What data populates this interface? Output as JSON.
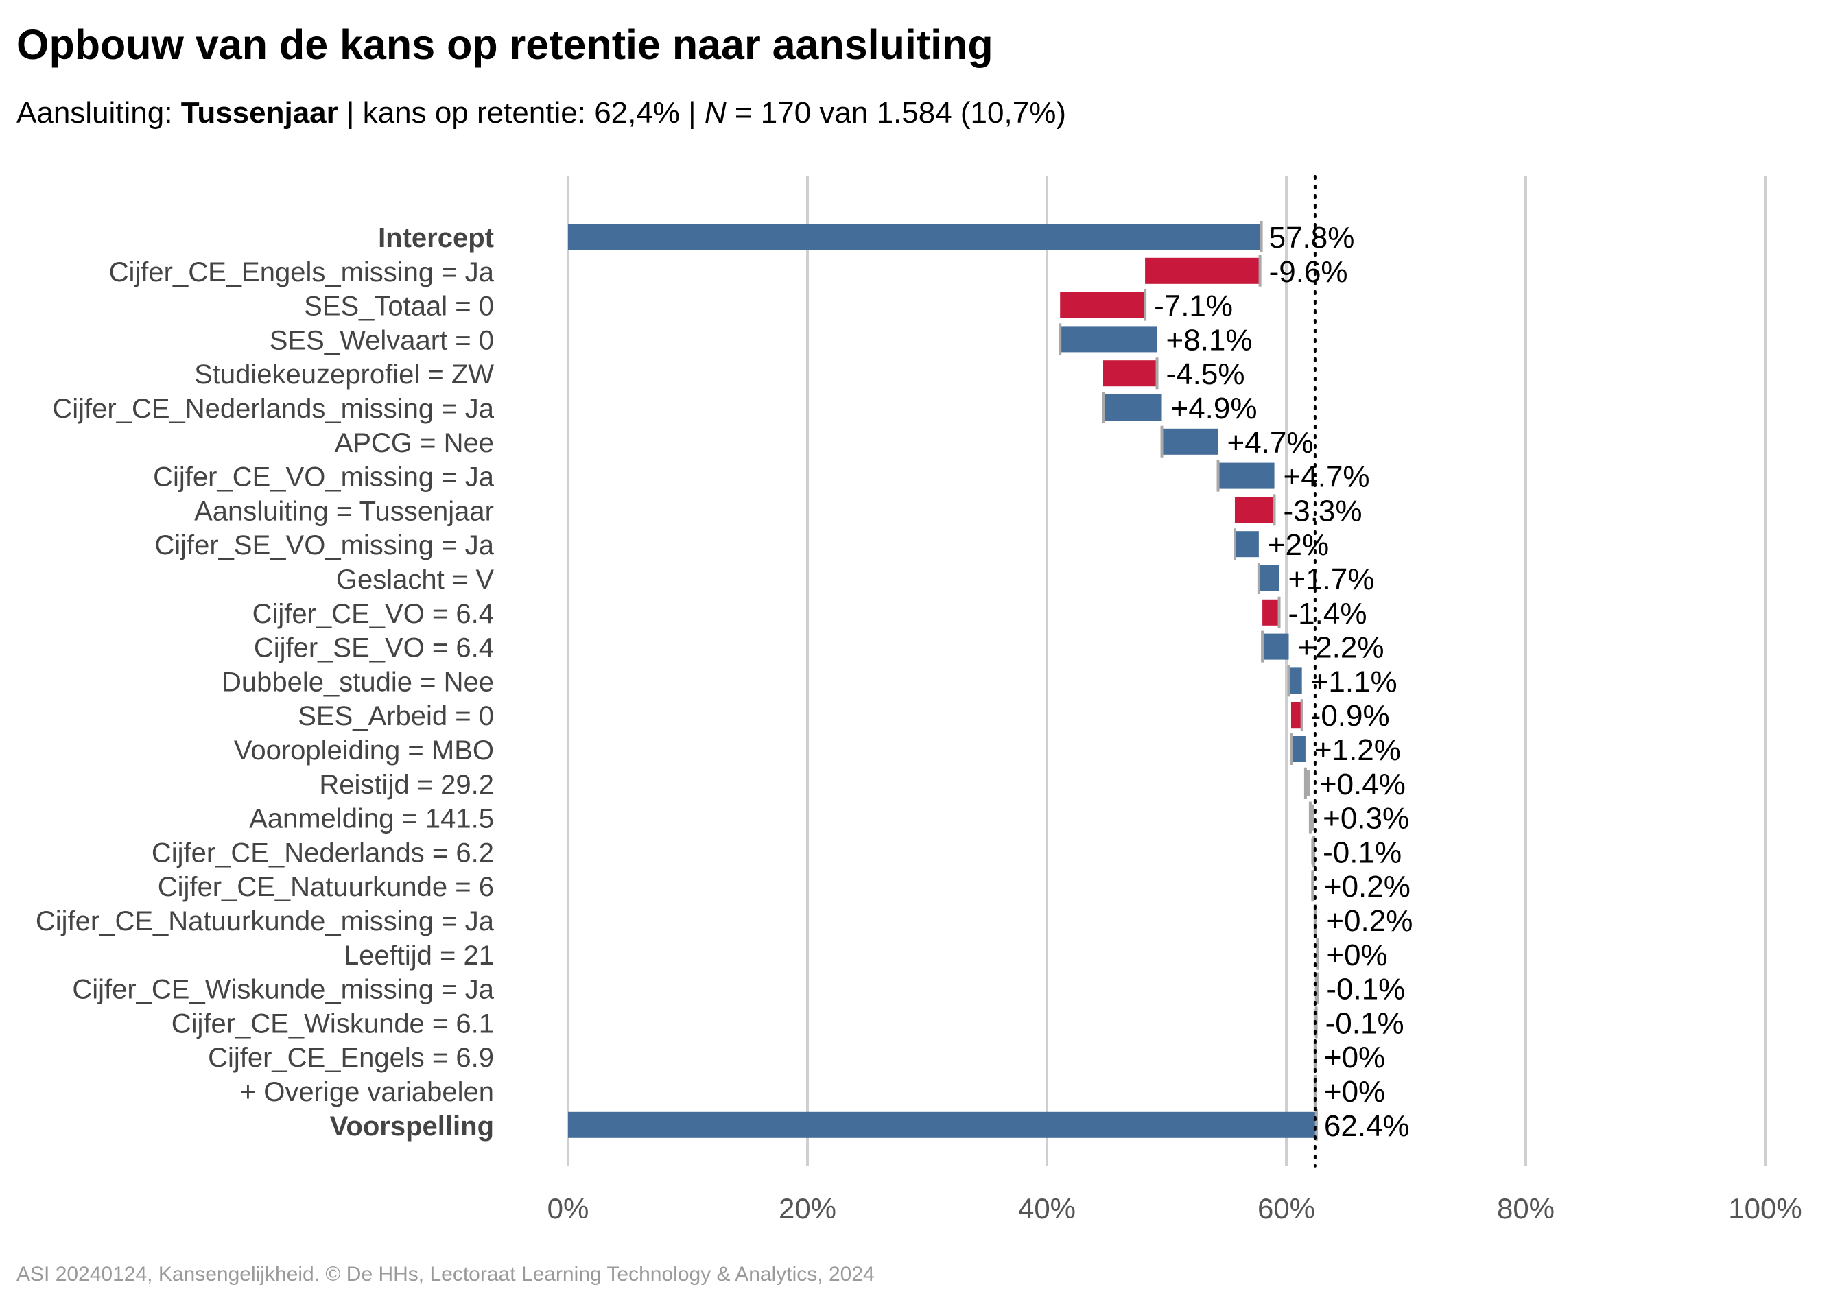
{
  "title": "Opbouw van de kans op retentie naar aansluiting",
  "subtitle": {
    "prefix": "Aansluiting: ",
    "group": "Tussenjaar",
    "middle": " | kans op retentie: 62,4% | ",
    "n_symbol": "N",
    "suffix": " = 170 van 1.584 (10,7%)"
  },
  "caption": "ASI 20240124, Kansengelijkheid. © De HHs, Lectoraat Learning Technology & Analytics, 2024",
  "colors": {
    "positive": "#446d99",
    "negative": "#c8193c",
    "connector": "#a8a8a8",
    "grid": "#cfcfcf"
  },
  "chart_data": {
    "type": "bar",
    "subtype": "waterfall",
    "xlim": [
      0,
      100
    ],
    "x_ticks": [
      "0%",
      "20%",
      "40%",
      "60%",
      "80%",
      "100%"
    ],
    "reference_line": 62.4,
    "grid": true,
    "rows": [
      {
        "label": "Intercept",
        "bold": true,
        "kind": "total",
        "value": 57.8,
        "label_text": "57.8%"
      },
      {
        "label": "Cijfer_CE_Engels_missing = Ja",
        "value": -9.6,
        "label_text": "-9.6%"
      },
      {
        "label": "SES_Totaal = 0",
        "value": -7.1,
        "label_text": "-7.1%"
      },
      {
        "label": "SES_Welvaart = 0",
        "value": 8.1,
        "label_text": "+8.1%"
      },
      {
        "label": "Studiekeuzeprofiel = ZW",
        "value": -4.5,
        "label_text": "-4.5%"
      },
      {
        "label": "Cijfer_CE_Nederlands_missing = Ja",
        "value": 4.9,
        "label_text": "+4.9%"
      },
      {
        "label": "APCG = Nee",
        "value": 4.7,
        "label_text": "+4.7%"
      },
      {
        "label": "Cijfer_CE_VO_missing = Ja",
        "value": 4.7,
        "label_text": "+4.7%"
      },
      {
        "label": "Aansluiting = Tussenjaar",
        "value": -3.3,
        "label_text": "-3.3%"
      },
      {
        "label": "Cijfer_SE_VO_missing = Ja",
        "value": 2.0,
        "label_text": "+2%"
      },
      {
        "label": "Geslacht = V",
        "value": 1.7,
        "label_text": "+1.7%"
      },
      {
        "label": "Cijfer_CE_VO = 6.4",
        "value": -1.4,
        "label_text": "-1.4%"
      },
      {
        "label": "Cijfer_SE_VO = 6.4",
        "value": 2.2,
        "label_text": "+2.2%"
      },
      {
        "label": "Dubbele_studie = Nee",
        "value": 1.1,
        "label_text": "+1.1%"
      },
      {
        "label": "SES_Arbeid = 0",
        "value": -0.9,
        "label_text": "-0.9%"
      },
      {
        "label": "Vooropleiding = MBO",
        "value": 1.2,
        "label_text": "+1.2%"
      },
      {
        "label": "Reistijd = 29.2",
        "value": 0.4,
        "label_text": "+0.4%"
      },
      {
        "label": "Aanmelding = 141.5",
        "value": 0.3,
        "label_text": "+0.3%"
      },
      {
        "label": "Cijfer_CE_Nederlands = 6.2",
        "value": -0.1,
        "label_text": "-0.1%"
      },
      {
        "label": "Cijfer_CE_Natuurkunde = 6",
        "value": 0.2,
        "label_text": "+0.2%"
      },
      {
        "label": "Cijfer_CE_Natuurkunde_missing = Ja",
        "value": 0.2,
        "label_text": "+0.2%"
      },
      {
        "label": "Leeftijd = 21",
        "value": 0.0,
        "label_text": "+0%"
      },
      {
        "label": "Cijfer_CE_Wiskunde_missing = Ja",
        "value": -0.1,
        "label_text": "-0.1%"
      },
      {
        "label": "Cijfer_CE_Wiskunde = 6.1",
        "value": -0.1,
        "label_text": "-0.1%"
      },
      {
        "label": "Cijfer_CE_Engels = 6.9",
        "value": 0.0,
        "label_text": "+0%"
      },
      {
        "label": "+ Overige variabelen",
        "value": 0.0,
        "label_text": "+0%"
      },
      {
        "label": "Voorspelling",
        "bold": true,
        "kind": "total",
        "value": 62.4,
        "label_text": "62.4%"
      }
    ]
  }
}
